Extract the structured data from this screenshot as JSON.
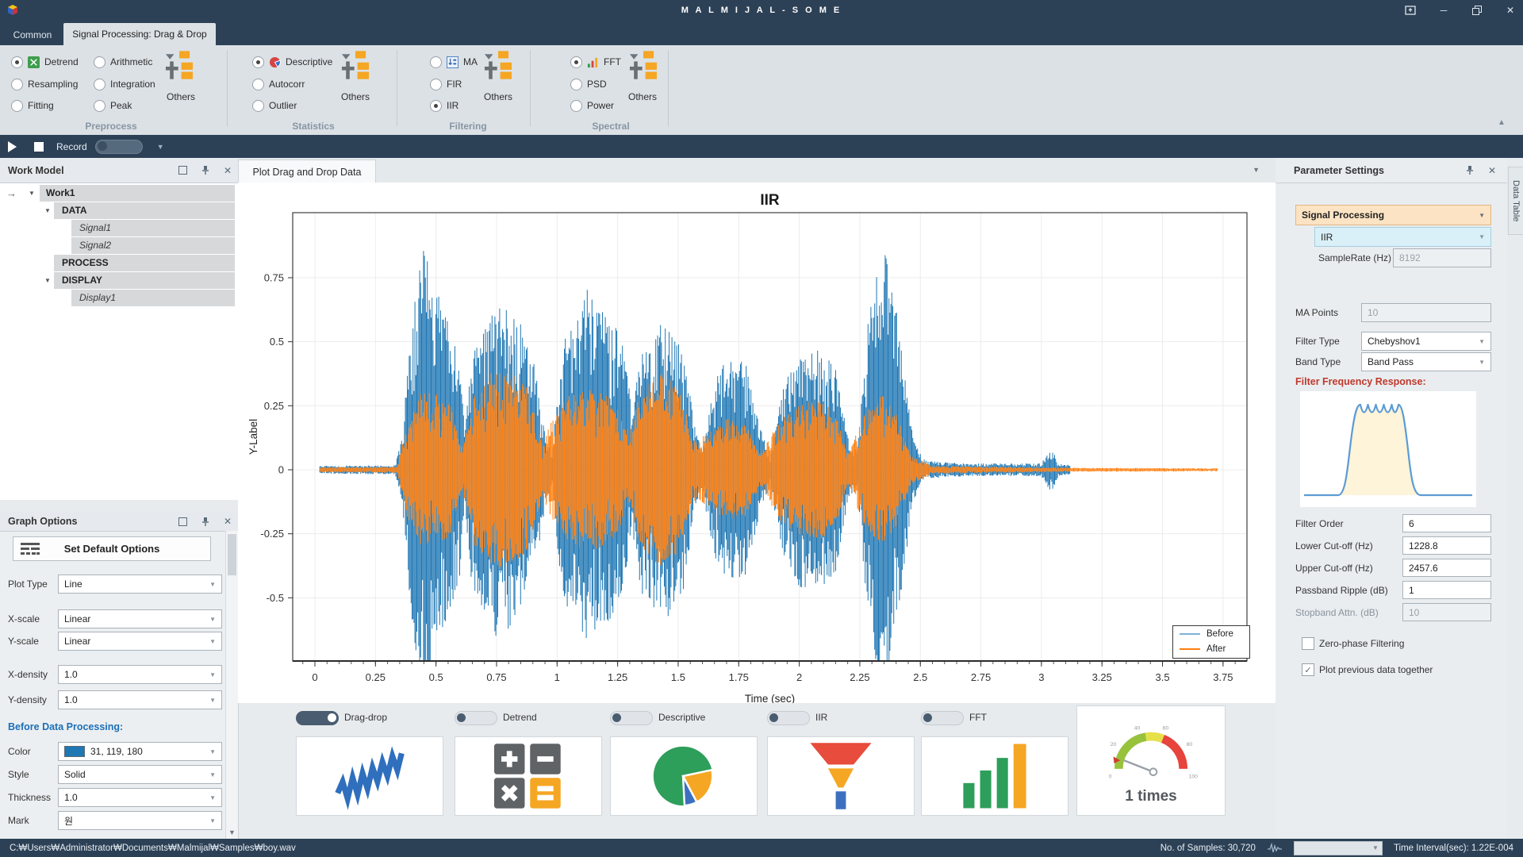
{
  "window": {
    "title": "M A L M I J A L - S O M E"
  },
  "tabs": {
    "common": "Common",
    "signal": "Signal Processing: Drag & Drop"
  },
  "ribbon": {
    "others": "Others",
    "groups": [
      {
        "label": "Preprocess",
        "col1": [
          "Detrend",
          "Resampling",
          "Fitting"
        ],
        "col2": [
          "Arithmetic",
          "Integration",
          "Peak"
        ]
      },
      {
        "label": "Statistics",
        "col1": [
          "Descriptive",
          "Autocorr",
          "Outlier"
        ]
      },
      {
        "label": "Filtering",
        "col1": [
          "MA",
          "FIR",
          "IIR"
        ]
      },
      {
        "label": "Spectral",
        "col1": [
          "FFT",
          "PSD",
          "Power"
        ]
      }
    ]
  },
  "record": {
    "label": "Record"
  },
  "work_model": {
    "title": "Work Model",
    "rows": [
      {
        "label": "Work1"
      },
      {
        "label": "DATA"
      },
      {
        "label": "Signal1"
      },
      {
        "label": "Signal2"
      },
      {
        "label": "PROCESS"
      },
      {
        "label": "DISPLAY"
      },
      {
        "label": "Display1"
      }
    ]
  },
  "graph_options": {
    "title": "Graph Options",
    "default_button": "Set Default Options",
    "fields": [
      {
        "label": "Plot Type",
        "value": "Line"
      },
      {
        "label": "X-scale",
        "value": "Linear"
      },
      {
        "label": "Y-scale",
        "value": "Linear"
      },
      {
        "label": "X-density",
        "value": "1.0"
      },
      {
        "label": "Y-density",
        "value": "1.0"
      }
    ],
    "section": "Before Data Processing:",
    "style_fields": [
      {
        "label": "Color",
        "value": "31, 119, 180"
      },
      {
        "label": "Style",
        "value": "Solid"
      },
      {
        "label": "Thickness",
        "value": "1.0"
      },
      {
        "label": "Mark",
        "value": "원"
      }
    ]
  },
  "plot_tab": {
    "label": "Plot Drag and Drop Data"
  },
  "chart_data": {
    "type": "line",
    "title": "IIR",
    "xlabel": "Time (sec)",
    "ylabel": "Y-Label",
    "xlim": [
      -0.09,
      3.85
    ],
    "ylim": [
      -0.75,
      1.0
    ],
    "xticks": [
      0,
      0.25,
      0.5,
      0.75,
      1,
      1.25,
      1.5,
      1.75,
      2,
      2.25,
      2.5,
      2.75,
      3,
      3.25,
      3.5,
      3.75
    ],
    "yticks": [
      0.75,
      0.5,
      0.25,
      0,
      -0.25,
      -0.5
    ],
    "legend": [
      "Before",
      "After"
    ],
    "grid": true,
    "legend_position": "lower right",
    "series": [
      {
        "name": "Before",
        "color": "#1f77b4",
        "range": [
          0.02,
          3.12
        ],
        "envelope": [
          [
            0.02,
            0.015
          ],
          [
            0.33,
            0.018
          ],
          [
            0.36,
            0.12
          ],
          [
            0.4,
            0.6
          ],
          [
            0.45,
            0.93
          ],
          [
            0.5,
            0.72
          ],
          [
            0.55,
            0.58
          ],
          [
            0.6,
            0.42
          ],
          [
            0.62,
            0.14
          ],
          [
            0.645,
            0.45
          ],
          [
            0.7,
            0.56
          ],
          [
            0.75,
            0.66
          ],
          [
            0.8,
            0.62
          ],
          [
            0.85,
            0.58
          ],
          [
            0.9,
            0.44
          ],
          [
            0.95,
            0.16
          ],
          [
            0.98,
            0.06
          ],
          [
            1.02,
            0.5
          ],
          [
            1.08,
            0.6
          ],
          [
            1.13,
            0.72
          ],
          [
            1.2,
            0.6
          ],
          [
            1.27,
            0.54
          ],
          [
            1.31,
            0.22
          ],
          [
            1.34,
            0.48
          ],
          [
            1.4,
            0.56
          ],
          [
            1.46,
            0.58
          ],
          [
            1.52,
            0.48
          ],
          [
            1.57,
            0.16
          ],
          [
            1.6,
            0.07
          ],
          [
            1.64,
            0.32
          ],
          [
            1.7,
            0.44
          ],
          [
            1.78,
            0.42
          ],
          [
            1.84,
            0.16
          ],
          [
            1.88,
            0.07
          ],
          [
            1.93,
            0.32
          ],
          [
            2.0,
            0.46
          ],
          [
            2.08,
            0.48
          ],
          [
            2.15,
            0.4
          ],
          [
            2.2,
            0.13
          ],
          [
            2.24,
            0.07
          ],
          [
            2.28,
            0.55
          ],
          [
            2.33,
            0.93
          ],
          [
            2.38,
            0.78
          ],
          [
            2.43,
            0.42
          ],
          [
            2.47,
            0.12
          ],
          [
            2.52,
            0.035
          ],
          [
            2.7,
            0.025
          ],
          [
            3.0,
            0.025
          ],
          [
            3.04,
            0.09
          ],
          [
            3.07,
            0.025
          ],
          [
            3.12,
            0.018
          ]
        ]
      },
      {
        "name": "After",
        "color": "#ff7f0e",
        "range": [
          0.02,
          3.73
        ],
        "envelope": [
          [
            0.02,
            0.01
          ],
          [
            0.34,
            0.012
          ],
          [
            0.38,
            0.18
          ],
          [
            0.44,
            0.3
          ],
          [
            0.5,
            0.3
          ],
          [
            0.56,
            0.26
          ],
          [
            0.61,
            0.08
          ],
          [
            0.66,
            0.3
          ],
          [
            0.72,
            0.38
          ],
          [
            0.8,
            0.4
          ],
          [
            0.88,
            0.32
          ],
          [
            0.94,
            0.1
          ],
          [
            1.0,
            0.26
          ],
          [
            1.06,
            0.3
          ],
          [
            1.14,
            0.32
          ],
          [
            1.22,
            0.3
          ],
          [
            1.3,
            0.14
          ],
          [
            1.34,
            0.3
          ],
          [
            1.42,
            0.38
          ],
          [
            1.5,
            0.34
          ],
          [
            1.56,
            0.12
          ],
          [
            1.62,
            0.14
          ],
          [
            1.7,
            0.2
          ],
          [
            1.78,
            0.18
          ],
          [
            1.84,
            0.06
          ],
          [
            1.92,
            0.2
          ],
          [
            2.0,
            0.26
          ],
          [
            2.08,
            0.28
          ],
          [
            2.15,
            0.22
          ],
          [
            2.2,
            0.06
          ],
          [
            2.27,
            0.22
          ],
          [
            2.34,
            0.3
          ],
          [
            2.4,
            0.22
          ],
          [
            2.46,
            0.06
          ],
          [
            2.55,
            0.015
          ],
          [
            2.9,
            0.01
          ],
          [
            3.1,
            0.008
          ],
          [
            3.73,
            0.006
          ]
        ]
      }
    ]
  },
  "toggles": [
    {
      "label": "Drag-drop",
      "on": true
    },
    {
      "label": "Detrend",
      "on": false
    },
    {
      "label": "Descriptive",
      "on": false
    },
    {
      "label": "IIR",
      "on": false
    },
    {
      "label": "FFT",
      "on": false
    }
  ],
  "cards": {
    "gauge_label": "1 times",
    "gauge_ticks": [
      "0",
      "20",
      "40",
      "60",
      "80",
      "100"
    ]
  },
  "params": {
    "title": "Parameter Settings",
    "category": "Signal Processing",
    "method": "IIR",
    "sample_rate_label": "SampleRate (Hz)",
    "sample_rate": "8192",
    "ma_label": "MA Points",
    "ma_value": "10",
    "filter_type_label": "Filter Type",
    "filter_type": "Chebyshov1",
    "band_type_label": "Band Type",
    "band_type": "Band Pass",
    "freq_label": "Filter Frequency Response:",
    "num_rows": [
      {
        "label": "Filter Order",
        "value": "6"
      },
      {
        "label": "Lower Cut-off (Hz)",
        "value": "1228.8"
      },
      {
        "label": "Upper Cut-off (Hz)",
        "value": "2457.6"
      },
      {
        "label": "Passband Ripple (dB)",
        "value": "1"
      },
      {
        "label": "Stopband Attn. (dB)",
        "value": "10"
      }
    ],
    "checks": [
      {
        "label": "Zero-phase Filtering",
        "checked": false
      },
      {
        "label": "Plot previous data together",
        "checked": true
      }
    ]
  },
  "side_tab": {
    "label": "Data Table"
  },
  "status": {
    "path": "C:₩Users₩Administrator₩Documents₩Malmijal₩Samples₩boy.wav",
    "samples": "No. of Samples: 30,720",
    "interval": "Time Interval(sec): 1.22E-004"
  },
  "colors": {
    "before": "#1f77b4",
    "after": "#ff7f0e",
    "navy": "#2d4156",
    "peach": "#fbe3c3",
    "cyan": "#daf0f8"
  }
}
